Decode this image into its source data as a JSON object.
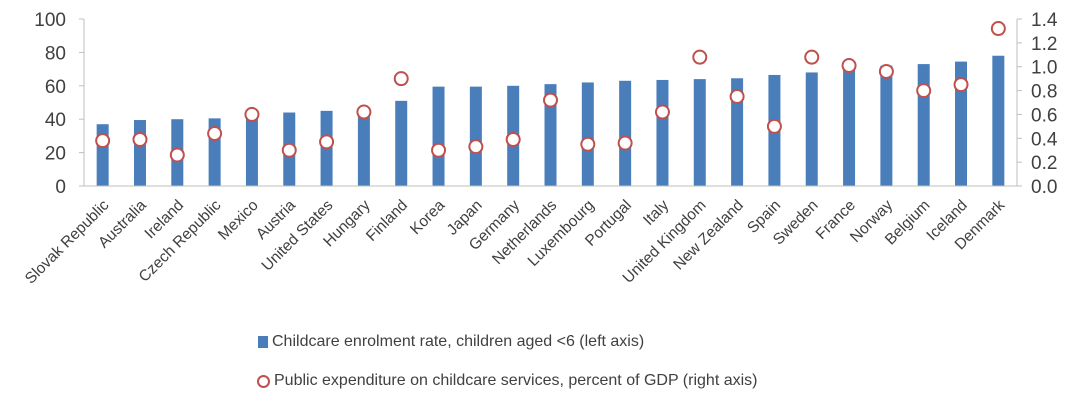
{
  "chart_data": {
    "type": "bar",
    "categories": [
      "Slovak Republic",
      "Australia",
      "Ireland",
      "Czech Republic",
      "Mexico",
      "Austria",
      "United States",
      "Hungary",
      "Finland",
      "Korea",
      "Japan",
      "Germany",
      "Netherlands",
      "Luxembourg",
      "Portugal",
      "Italy",
      "United Kingdom",
      "New Zealand",
      "Spain",
      "Sweden",
      "France",
      "Norway",
      "Belgium",
      "Iceland",
      "Denmark"
    ],
    "series": [
      {
        "name": "Childcare enrolment rate, children aged <6 (left axis)",
        "type": "bar",
        "axis": "left",
        "color": "#4a7ebb",
        "values": [
          37,
          39.5,
          40,
          40.5,
          43,
          44,
          45,
          44,
          51,
          59.5,
          59.5,
          60,
          61,
          62,
          63,
          63.5,
          64,
          64.5,
          66.5,
          68,
          70,
          72,
          73,
          74.5,
          78
        ]
      },
      {
        "name": "Public expenditure on childcare services, percent of GDP (right axis)",
        "type": "scatter",
        "axis": "right",
        "color": "#c0504d",
        "values": [
          0.38,
          0.39,
          0.26,
          0.44,
          0.6,
          0.3,
          0.37,
          0.62,
          0.9,
          0.3,
          0.33,
          0.39,
          0.72,
          0.35,
          0.36,
          0.62,
          1.08,
          0.75,
          0.5,
          1.08,
          1.01,
          0.96,
          0.8,
          0.85,
          1.32
        ]
      }
    ],
    "y_left": {
      "range": [
        0,
        100
      ],
      "ticks": [
        "0",
        "20",
        "40",
        "60",
        "80",
        "100"
      ]
    },
    "y_right": {
      "range": [
        0,
        1.4
      ],
      "ticks": [
        "0.0",
        "0.2",
        "0.4",
        "0.6",
        "0.8",
        "1.0",
        "1.2",
        "1.4"
      ]
    },
    "grid": false,
    "legend_position": "bottom",
    "title": "",
    "xlabel": "",
    "ylabel": ""
  }
}
